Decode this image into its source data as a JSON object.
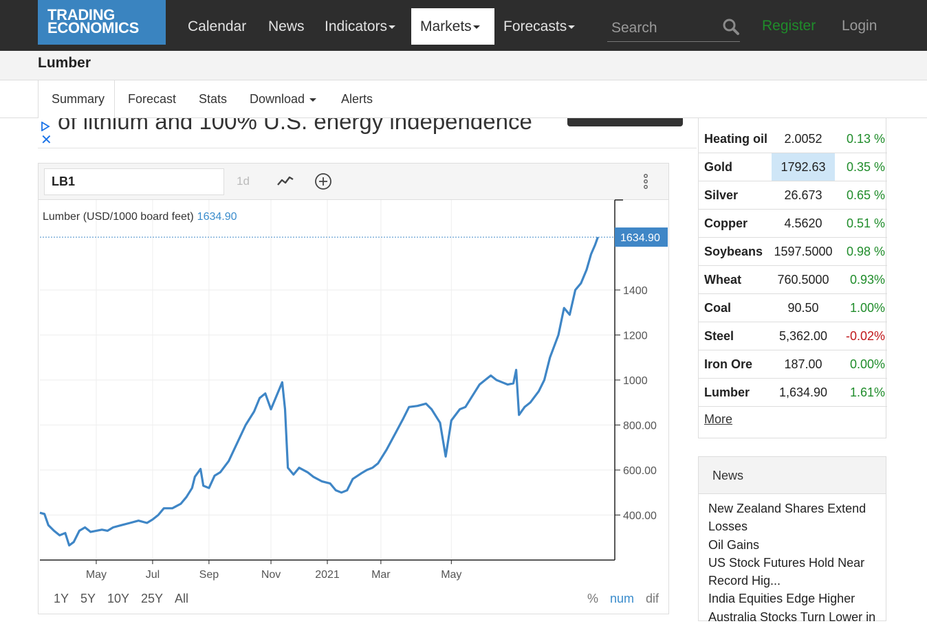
{
  "header": {
    "logo_line1": "TRADING",
    "logo_line2": "ECONOMICS",
    "nav": [
      "Calendar",
      "News",
      "Indicators",
      "Markets",
      "Forecasts"
    ],
    "search_placeholder": "Search",
    "register": "Register",
    "login": "Login",
    "colors": {
      "bar": "#2d2d2d",
      "logo": "#3a84c0",
      "register": "#1f8c2a"
    }
  },
  "page": {
    "title": "Lumber"
  },
  "tabs": [
    "Summary",
    "Forecast",
    "Stats",
    "Download",
    "Alerts"
  ],
  "ad": {
    "text": "of lithium and 100% U.S. energy independence"
  },
  "chart": {
    "symbol": "LB1",
    "interval": "1d",
    "legend_label": "Lumber (USD/1000 board feet)",
    "legend_value": "1634.90",
    "last_price_tag": "1634.90",
    "ranges": [
      "1Y",
      "5Y",
      "10Y",
      "25Y",
      "All"
    ],
    "modes": [
      "%",
      "num",
      "dif"
    ],
    "active_mode": "num",
    "line_color": "#3f86c6"
  },
  "chart_data": {
    "type": "line",
    "title": "",
    "series": [
      {
        "name": "Lumber (USD/1000 board feet)",
        "points": [
          [
            0,
            410
          ],
          [
            0.08,
            405
          ],
          [
            0.15,
            355
          ],
          [
            0.25,
            330
          ],
          [
            0.35,
            310
          ],
          [
            0.45,
            320
          ],
          [
            0.52,
            265
          ],
          [
            0.6,
            280
          ],
          [
            0.7,
            330
          ],
          [
            0.8,
            345
          ],
          [
            0.9,
            325
          ],
          [
            1.0,
            330
          ],
          [
            1.1,
            335
          ],
          [
            1.2,
            330
          ],
          [
            1.3,
            345
          ],
          [
            1.45,
            355
          ],
          [
            1.6,
            365
          ],
          [
            1.75,
            375
          ],
          [
            1.9,
            365
          ],
          [
            2.0,
            380
          ],
          [
            2.1,
            400
          ],
          [
            2.2,
            430
          ],
          [
            2.35,
            430
          ],
          [
            2.5,
            450
          ],
          [
            2.6,
            480
          ],
          [
            2.7,
            520
          ],
          [
            2.75,
            570
          ],
          [
            2.85,
            605
          ],
          [
            2.9,
            530
          ],
          [
            3.0,
            520
          ],
          [
            3.1,
            575
          ],
          [
            3.2,
            590
          ],
          [
            3.35,
            640
          ],
          [
            3.5,
            720
          ],
          [
            3.65,
            800
          ],
          [
            3.8,
            860
          ],
          [
            3.9,
            920
          ],
          [
            4.0,
            940
          ],
          [
            4.1,
            870
          ],
          [
            4.2,
            930
          ],
          [
            4.3,
            990
          ],
          [
            4.35,
            870
          ],
          [
            4.4,
            610
          ],
          [
            4.5,
            580
          ],
          [
            4.6,
            610
          ],
          [
            4.75,
            590
          ],
          [
            4.85,
            570
          ],
          [
            5.0,
            550
          ],
          [
            5.15,
            540
          ],
          [
            5.25,
            510
          ],
          [
            5.35,
            500
          ],
          [
            5.45,
            510
          ],
          [
            5.55,
            560
          ],
          [
            5.7,
            585
          ],
          [
            5.8,
            600
          ],
          [
            5.9,
            610
          ],
          [
            6.0,
            630
          ],
          [
            6.15,
            690
          ],
          [
            6.3,
            760
          ],
          [
            6.45,
            830
          ],
          [
            6.55,
            880
          ],
          [
            6.7,
            885
          ],
          [
            6.85,
            895
          ],
          [
            6.95,
            870
          ],
          [
            7.1,
            810
          ],
          [
            7.2,
            660
          ],
          [
            7.3,
            820
          ],
          [
            7.45,
            870
          ],
          [
            7.55,
            880
          ],
          [
            7.65,
            920
          ],
          [
            7.8,
            980
          ],
          [
            7.9,
            1000
          ],
          [
            8.0,
            1020
          ],
          [
            8.1,
            1000
          ],
          [
            8.2,
            990
          ],
          [
            8.3,
            980
          ],
          [
            8.4,
            985
          ],
          [
            8.45,
            1045
          ],
          [
            8.5,
            845
          ],
          [
            8.6,
            880
          ],
          [
            8.7,
            900
          ],
          [
            8.85,
            950
          ],
          [
            8.95,
            1000
          ],
          [
            9.05,
            1100
          ],
          [
            9.2,
            1200
          ],
          [
            9.3,
            1320
          ],
          [
            9.4,
            1290
          ],
          [
            9.5,
            1400
          ],
          [
            9.6,
            1430
          ],
          [
            9.7,
            1490
          ],
          [
            9.78,
            1560
          ],
          [
            9.85,
            1600
          ],
          [
            9.9,
            1634.9
          ]
        ]
      }
    ],
    "x_tick_labels": [
      "May",
      "Jul",
      "Sep",
      "Nov",
      "2021",
      "Mar",
      "May"
    ],
    "y_tick_labels": [
      "400.00",
      "600.00",
      "800.00",
      "1000",
      "1200",
      "1400"
    ],
    "y_ticks": [
      400,
      600,
      800,
      1000,
      1200,
      1400
    ],
    "ylim": [
      200,
      1800
    ],
    "grid": true,
    "legend": "top-left"
  },
  "sidebar": {
    "rows": [
      {
        "name": "Heating oil",
        "price": "2.0052",
        "change": "0.13 %",
        "dir": "up"
      },
      {
        "name": "Gold",
        "price": "1792.63",
        "change": "0.35 %",
        "dir": "up",
        "highlight": true
      },
      {
        "name": "Silver",
        "price": "26.673",
        "change": "0.65 %",
        "dir": "up"
      },
      {
        "name": "Copper",
        "price": "4.5620",
        "change": "0.51 %",
        "dir": "up"
      },
      {
        "name": "Soybeans",
        "price": "1597.5000",
        "change": "0.98 %",
        "dir": "up"
      },
      {
        "name": "Wheat",
        "price": "760.5000",
        "change": "0.93%",
        "dir": "up"
      },
      {
        "name": "Coal",
        "price": "90.50",
        "change": "1.00%",
        "dir": "up"
      },
      {
        "name": "Steel",
        "price": "5,362.00",
        "change": "-0.02%",
        "dir": "down"
      },
      {
        "name": "Iron Ore",
        "price": "187.00",
        "change": "0.00%",
        "dir": "up"
      },
      {
        "name": "Lumber",
        "price": "1,634.90",
        "change": "1.61%",
        "dir": "up"
      }
    ],
    "more": "More"
  },
  "news": {
    "title": "News",
    "items": [
      "New Zealand Shares Extend Losses",
      "Oil Gains",
      "US Stock Futures Hold Near Record Hig...",
      "India Equities Edge Higher",
      "Australia Stocks Turn Lower in"
    ]
  }
}
